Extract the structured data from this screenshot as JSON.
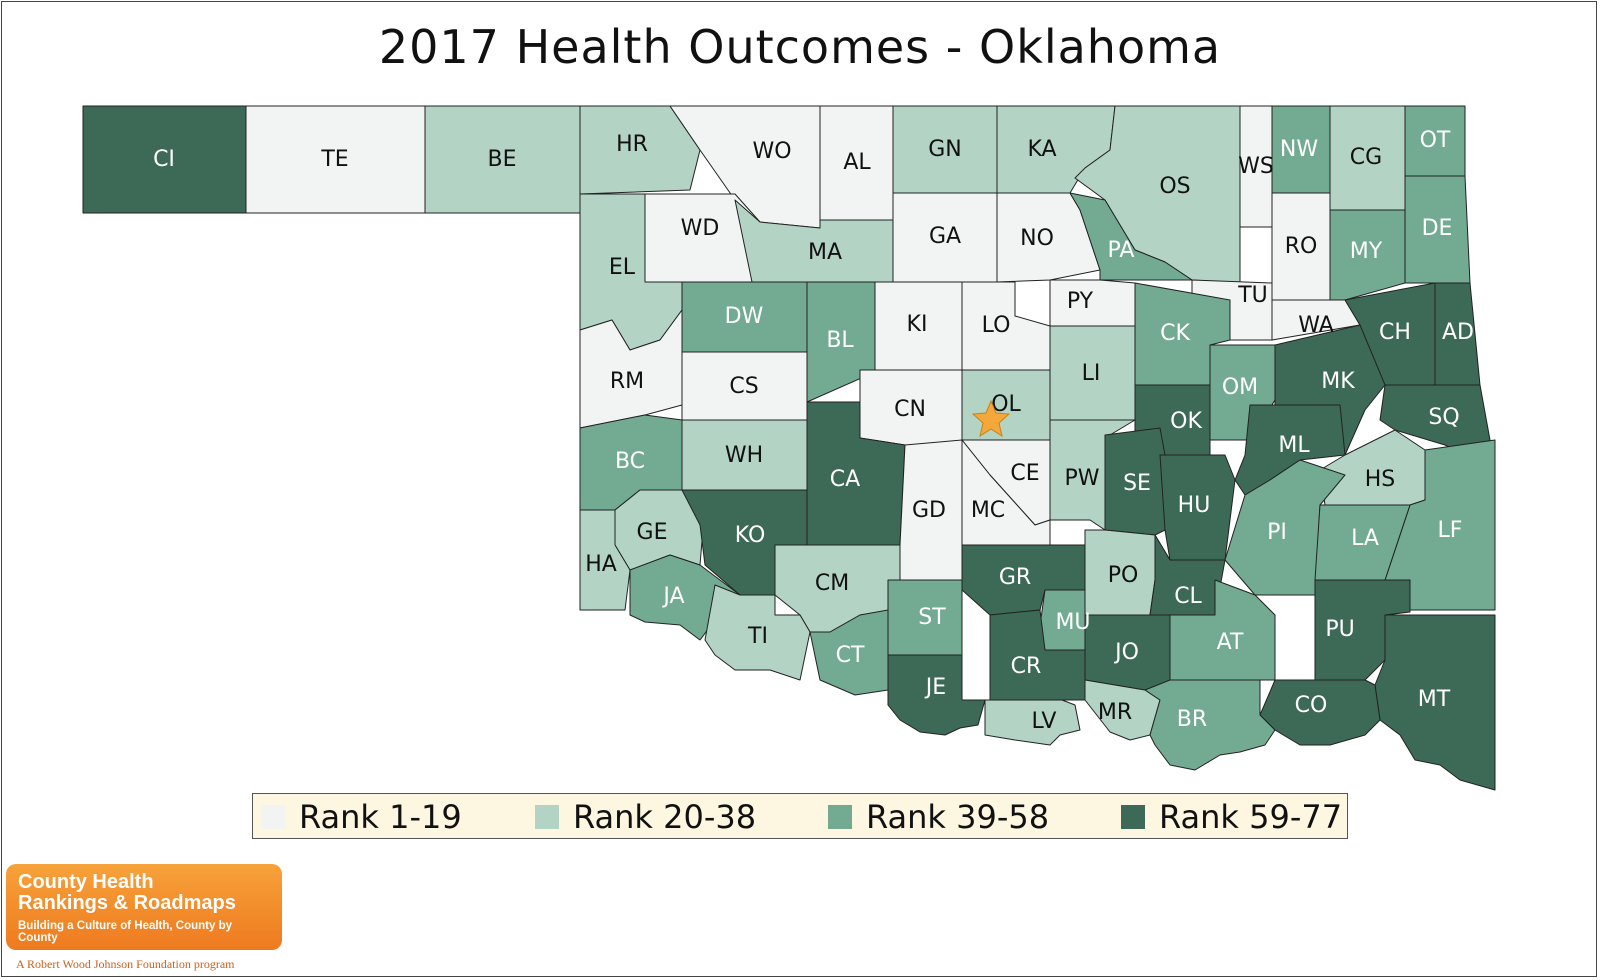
{
  "title": "2017 Health Outcomes - Oklahoma",
  "colors": {
    "rank_1_19": "#f1f4f2",
    "rank_20_38": "#b3d3c5",
    "rank_39_58": "#72ab91",
    "rank_59_77": "#3d6a56",
    "legend_bg": "#fdf6e0",
    "star": "#f4a73a",
    "logo": "#f08a2a"
  },
  "legend": [
    {
      "label": "Rank 1-19",
      "tier": 1
    },
    {
      "label": "Rank 20-38",
      "tier": 2
    },
    {
      "label": "Rank 39-58",
      "tier": 3
    },
    {
      "label": "Rank 59-77",
      "tier": 4
    }
  ],
  "counties": [
    {
      "code": "CI",
      "tier": 4
    },
    {
      "code": "TE",
      "tier": 1
    },
    {
      "code": "BE",
      "tier": 2
    },
    {
      "code": "HR",
      "tier": 2
    },
    {
      "code": "WO",
      "tier": 1
    },
    {
      "code": "AL",
      "tier": 1
    },
    {
      "code": "GN",
      "tier": 2
    },
    {
      "code": "KA",
      "tier": 2
    },
    {
      "code": "OS",
      "tier": 2
    },
    {
      "code": "WS",
      "tier": 1
    },
    {
      "code": "NW",
      "tier": 3
    },
    {
      "code": "CG",
      "tier": 2
    },
    {
      "code": "OT",
      "tier": 3
    },
    {
      "code": "EL",
      "tier": 2
    },
    {
      "code": "WD",
      "tier": 1
    },
    {
      "code": "MA",
      "tier": 2
    },
    {
      "code": "GA",
      "tier": 1
    },
    {
      "code": "NO",
      "tier": 1
    },
    {
      "code": "PA",
      "tier": 3
    },
    {
      "code": "RO",
      "tier": 1
    },
    {
      "code": "MY",
      "tier": 3
    },
    {
      "code": "DE",
      "tier": 3
    },
    {
      "code": "PY",
      "tier": 1
    },
    {
      "code": "TU",
      "tier": 1
    },
    {
      "code": "DW",
      "tier": 3
    },
    {
      "code": "BL",
      "tier": 3
    },
    {
      "code": "KI",
      "tier": 1
    },
    {
      "code": "LO",
      "tier": 1
    },
    {
      "code": "CK",
      "tier": 3
    },
    {
      "code": "WA",
      "tier": 1
    },
    {
      "code": "CH",
      "tier": 4
    },
    {
      "code": "AD",
      "tier": 4
    },
    {
      "code": "RM",
      "tier": 1
    },
    {
      "code": "CS",
      "tier": 1
    },
    {
      "code": "LI",
      "tier": 2
    },
    {
      "code": "OM",
      "tier": 3
    },
    {
      "code": "MK",
      "tier": 4
    },
    {
      "code": "CN",
      "tier": 1
    },
    {
      "code": "OL",
      "tier": 2
    },
    {
      "code": "OK",
      "tier": 4
    },
    {
      "code": "SQ",
      "tier": 4
    },
    {
      "code": "BC",
      "tier": 3
    },
    {
      "code": "WH",
      "tier": 2
    },
    {
      "code": "ML",
      "tier": 4
    },
    {
      "code": "CA",
      "tier": 4
    },
    {
      "code": "CE",
      "tier": 1
    },
    {
      "code": "PW",
      "tier": 2
    },
    {
      "code": "SE",
      "tier": 4
    },
    {
      "code": "HS",
      "tier": 2
    },
    {
      "code": "HU",
      "tier": 4
    },
    {
      "code": "GE",
      "tier": 2
    },
    {
      "code": "KO",
      "tier": 4
    },
    {
      "code": "GD",
      "tier": 1
    },
    {
      "code": "MC",
      "tier": 1
    },
    {
      "code": "PI",
      "tier": 3
    },
    {
      "code": "LF",
      "tier": 3
    },
    {
      "code": "LA",
      "tier": 3
    },
    {
      "code": "HA",
      "tier": 2
    },
    {
      "code": "GR",
      "tier": 4
    },
    {
      "code": "PO",
      "tier": 2
    },
    {
      "code": "CM",
      "tier": 2
    },
    {
      "code": "JA",
      "tier": 3
    },
    {
      "code": "CL",
      "tier": 4
    },
    {
      "code": "ST",
      "tier": 3
    },
    {
      "code": "MU",
      "tier": 3
    },
    {
      "code": "PU",
      "tier": 4
    },
    {
      "code": "AT",
      "tier": 3
    },
    {
      "code": "TI",
      "tier": 2
    },
    {
      "code": "JO",
      "tier": 4
    },
    {
      "code": "CT",
      "tier": 3
    },
    {
      "code": "CR",
      "tier": 4
    },
    {
      "code": "MT",
      "tier": 4
    },
    {
      "code": "CO",
      "tier": 4
    },
    {
      "code": "JE",
      "tier": 4
    },
    {
      "code": "MR",
      "tier": 2
    },
    {
      "code": "LV",
      "tier": 2
    },
    {
      "code": "BR",
      "tier": 3
    }
  ],
  "logo": {
    "line1": "County Health",
    "line2": "Rankings & Roadmaps",
    "line3": "Building a Culture of Health, County by County",
    "footer": "A Robert Wood Johnson Foundation program"
  }
}
